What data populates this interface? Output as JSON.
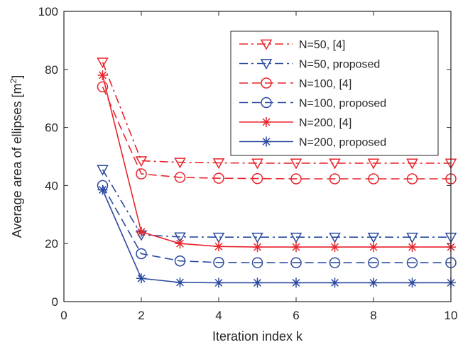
{
  "chart_data": {
    "type": "line",
    "xlabel": "Iteration index k",
    "ylabel": "Average area of ellipses [m",
    "ylabel_superscript": "2",
    "ylabel_suffix": "]",
    "xlim": [
      0,
      10
    ],
    "ylim": [
      0,
      100
    ],
    "xticks": [
      0,
      2,
      4,
      6,
      8,
      10
    ],
    "yticks": [
      0,
      20,
      40,
      60,
      80,
      100
    ],
    "grid": false,
    "legend_position": "top-right",
    "x": [
      1,
      2,
      3,
      4,
      5,
      6,
      7,
      8,
      9,
      10
    ],
    "series": [
      {
        "name": "N=50, [4]",
        "color": "#e8242c",
        "dash": "dashdot",
        "marker": "triangle-down",
        "values": [
          82.5,
          48.5,
          48,
          47.8,
          47.7,
          47.7,
          47.7,
          47.7,
          47.7,
          47.7
        ]
      },
      {
        "name": "N=50, proposed",
        "color": "#2b4aa0",
        "dash": "dashdot",
        "marker": "triangle-down",
        "values": [
          45.5,
          23,
          22.3,
          22.2,
          22.2,
          22.2,
          22.2,
          22.2,
          22.2,
          22.2
        ]
      },
      {
        "name": "N=100, [4]",
        "color": "#e8242c",
        "dash": "dashed",
        "marker": "circle",
        "values": [
          74,
          44,
          42.8,
          42.5,
          42.4,
          42.3,
          42.3,
          42.3,
          42.3,
          42.3
        ]
      },
      {
        "name": "N=100, proposed",
        "color": "#2b4aa0",
        "dash": "dashed",
        "marker": "circle",
        "values": [
          40,
          16.5,
          14,
          13.5,
          13.4,
          13.4,
          13.4,
          13.4,
          13.4,
          13.4
        ]
      },
      {
        "name": "N=200, [4]",
        "color": "#e8242c",
        "dash": "solid",
        "marker": "asterisk",
        "values": [
          78,
          24,
          20,
          19,
          18.8,
          18.8,
          18.8,
          18.8,
          18.8,
          18.8
        ]
      },
      {
        "name": "N=200, proposed",
        "color": "#2b4aa0",
        "dash": "solid",
        "marker": "asterisk",
        "values": [
          38.5,
          8,
          6.6,
          6.5,
          6.5,
          6.5,
          6.5,
          6.5,
          6.5,
          6.5
        ]
      }
    ]
  }
}
